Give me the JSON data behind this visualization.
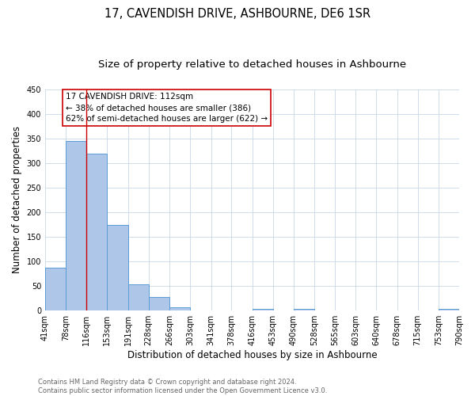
{
  "title": "17, CAVENDISH DRIVE, ASHBOURNE, DE6 1SR",
  "subtitle": "Size of property relative to detached houses in Ashbourne",
  "xlabel": "Distribution of detached houses by size in Ashbourne",
  "ylabel": "Number of detached properties",
  "bar_edges": [
    41,
    78,
    116,
    153,
    191,
    228,
    266,
    303,
    341,
    378,
    416,
    453,
    490,
    528,
    565,
    603,
    640,
    678,
    715,
    753,
    790
  ],
  "bar_heights": [
    88,
    345,
    320,
    175,
    53,
    27,
    7,
    0,
    0,
    0,
    4,
    0,
    4,
    0,
    0,
    0,
    0,
    0,
    0,
    3
  ],
  "bar_color": "#aec6e8",
  "bar_edge_color": "#5b9bd5",
  "vline_x": 116,
  "vline_color": "#cc0000",
  "annotation_line1": "17 CAVENDISH DRIVE: 112sqm",
  "annotation_line2": "← 38% of detached houses are smaller (386)",
  "annotation_line3": "62% of semi-detached houses are larger (622) →",
  "annotation_box_color": "#cc0000",
  "ylim": [
    0,
    450
  ],
  "yticks": [
    0,
    50,
    100,
    150,
    200,
    250,
    300,
    350,
    400,
    450
  ],
  "tick_labels": [
    "41sqm",
    "78sqm",
    "116sqm",
    "153sqm",
    "191sqm",
    "228sqm",
    "266sqm",
    "303sqm",
    "341sqm",
    "378sqm",
    "416sqm",
    "453sqm",
    "490sqm",
    "528sqm",
    "565sqm",
    "603sqm",
    "640sqm",
    "678sqm",
    "715sqm",
    "753sqm",
    "790sqm"
  ],
  "footer_text": "Contains HM Land Registry data © Crown copyright and database right 2024.\nContains public sector information licensed under the Open Government Licence v3.0.",
  "background_color": "#ffffff",
  "grid_color": "#c8d8e8",
  "title_fontsize": 10.5,
  "subtitle_fontsize": 9.5,
  "ylabel_fontsize": 8.5,
  "xlabel_fontsize": 8.5,
  "tick_fontsize": 7,
  "annotation_fontsize": 7.5,
  "footer_fontsize": 6
}
